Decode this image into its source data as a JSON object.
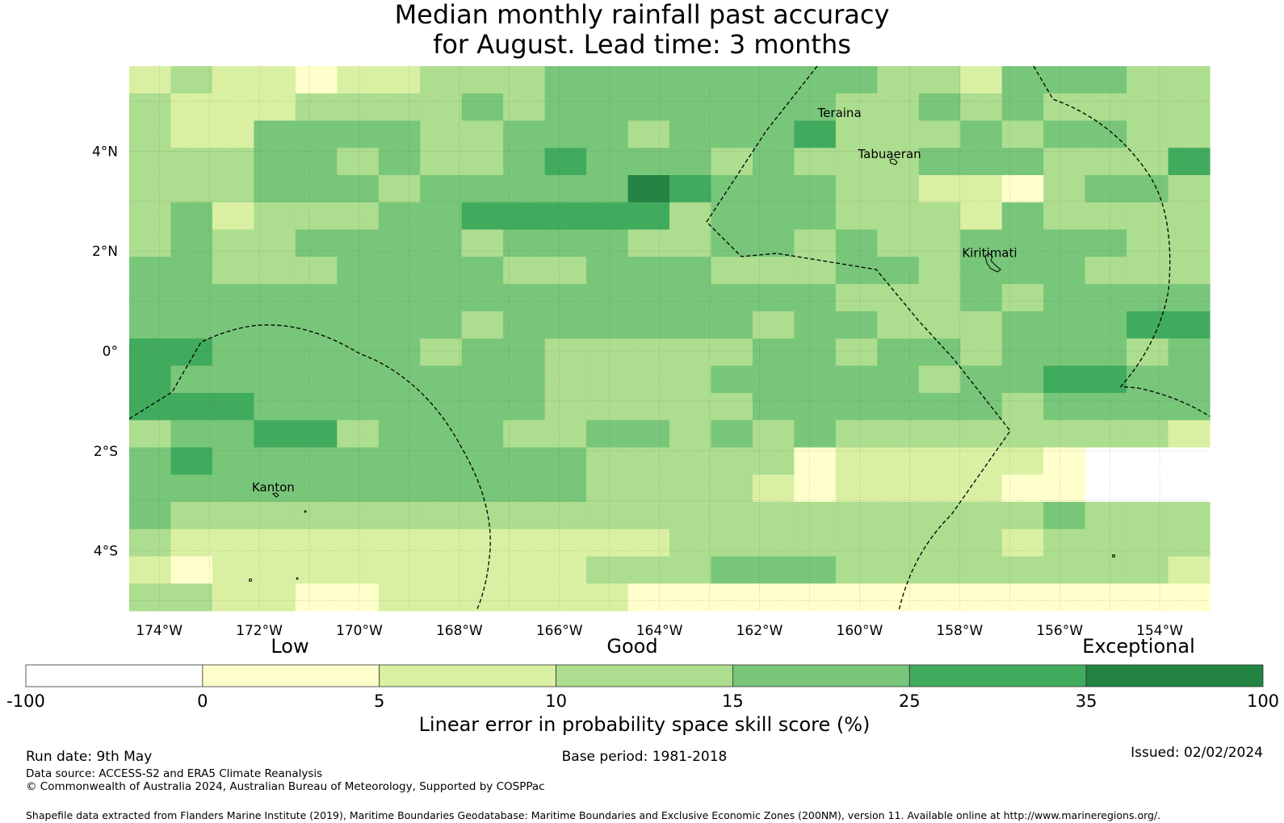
{
  "title": {
    "line1": "Median monthly rainfall past accuracy",
    "line2": "for August. Lead time: 3 months"
  },
  "map": {
    "lon_ticks": [
      "174°W",
      "172°W",
      "170°W",
      "168°W",
      "166°W",
      "164°W",
      "162°W",
      "160°W",
      "158°W",
      "156°W",
      "154°W"
    ],
    "lat_ticks": [
      "4°N",
      "2°N",
      "0°",
      "2°S",
      "4°S"
    ],
    "places": [
      {
        "name": "Teraina",
        "lon": -160.4,
        "lat": 4.68
      },
      {
        "name": "Tabuaeran",
        "lon": -159.4,
        "lat": 3.86
      },
      {
        "name": "Kiritimati",
        "lon": -157.4,
        "lat": 1.88
      },
      {
        "name": "Kanton",
        "lon": -171.72,
        "lat": -2.81
      }
    ],
    "extent": {
      "lon_min": -174.6,
      "lon_max": -153.0,
      "lat_min": -5.2,
      "lat_max": 5.7
    },
    "grid": "dotted 1° lines",
    "eez_boundaries": "dashed lines"
  },
  "legend": {
    "categories": {
      "low": "Low",
      "good": "Good",
      "exceptional": "Exceptional"
    },
    "ticks": [
      "-100",
      "0",
      "5",
      "10",
      "15",
      "25",
      "35",
      "100"
    ],
    "colors": [
      "#ffffff",
      "#ffffcc",
      "#d9f0a3",
      "#addd8e",
      "#78c679",
      "#41ab5d",
      "#238443"
    ],
    "title": "Linear error in probability space skill score (%)"
  },
  "footer": {
    "run_date": "Run date: 9th May",
    "base_period": "Base period: 1981-2018",
    "issued": "Issued: 02/02/2024",
    "data_source": "Data source: ACCESS-S2 and ERA5 Climate Reanalysis",
    "copyright": "© Commonwealth of Australia 2024, Australian Bureau of Meteorology, Supported by COSPPac",
    "shapefile": "Shapefile data extracted from Flanders Marine Institute (2019), Maritime Boundaries Geodatabase: Maritime Boundaries and Exclusive Economic Zones (200NM), version 11. Available online at http://www.marineregions.org/."
  }
}
